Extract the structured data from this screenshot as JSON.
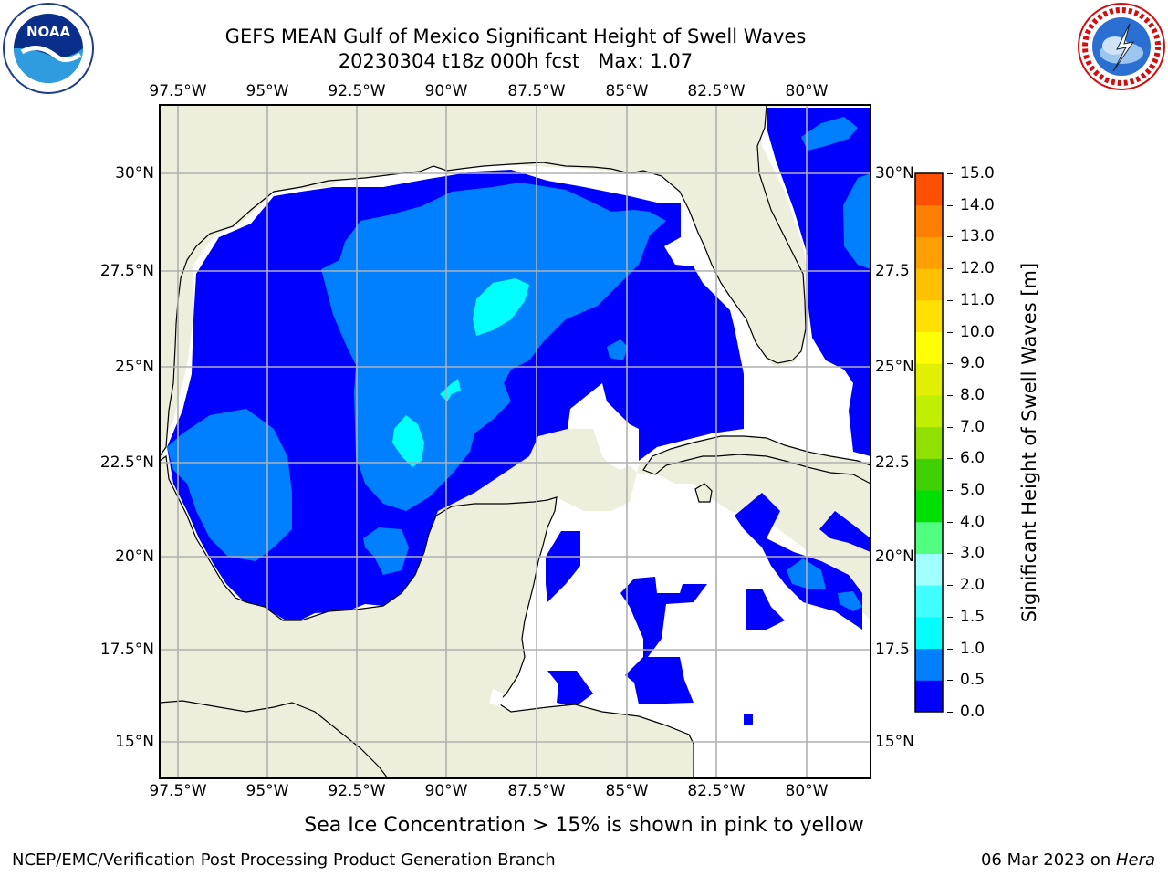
{
  "title": {
    "line1": "GEFS MEAN Gulf of Mexico Significant Height of Swell Waves",
    "line2": "20230304 t18z 000h fcst   Max: 1.07"
  },
  "logos": {
    "left": {
      "icon": "noaa-logo",
      "text": "NOAA",
      "ring_text": "NATIONAL OCEANIC AND ATMOSPHERIC ADMINISTRATION · U.S. DEPARTMENT OF COMMERCE"
    },
    "right": {
      "icon": "nws-logo",
      "ring_text": "NATIONAL WEATHER SERVICE"
    }
  },
  "map": {
    "lon_labels": [
      "97.5°W",
      "95°W",
      "92.5°W",
      "90°W",
      "87.5°W",
      "85°W",
      "82.5°W",
      "80°W"
    ],
    "lat_labels_left": [
      "30°N",
      "27.5°N",
      "25°N",
      "22.5°N",
      "20°N",
      "17.5°N",
      "15°N"
    ],
    "lat_labels_right": [
      "30°N",
      "27.5",
      "25°N",
      "22.5",
      "20°N",
      "17.5",
      "15°N"
    ],
    "colors": {
      "land": "#eeeedd",
      "band_0_0_5": "#0000ff",
      "band_0_5_1_0": "#0080ff",
      "band_1_0_1_5": "#00ffff",
      "no_data": "#ffffff",
      "grid": "#b0b0b0"
    }
  },
  "colorbar": {
    "label": "Significant Height of Swell Waves [m]",
    "ticks": [
      "15.0",
      "14.0",
      "13.0",
      "12.0",
      "11.0",
      "10.0",
      "9.0",
      "8.0",
      "7.0",
      "6.0",
      "5.0",
      "4.0",
      "3.0",
      "2.0",
      "1.5",
      "1.0",
      "0.5",
      "0.0"
    ],
    "colors": [
      "#0000ff",
      "#0080ff",
      "#00ffff",
      "#40ffff",
      "#a0ffff",
      "#50ff80",
      "#00e000",
      "#40d000",
      "#90e000",
      "#c0f000",
      "#e0f000",
      "#ffff00",
      "#ffe000",
      "#ffc000",
      "#ffa000",
      "#ff8000",
      "#ff5000",
      "#ff2000",
      "#ff0000"
    ]
  },
  "note": "Sea Ice Concentration > 15% is shown in pink to yellow",
  "footer": {
    "left": "NCEP/EMC/Verification Post Processing Product Generation Branch",
    "date": "06 Mar 2023 on ",
    "machine": "Hera"
  }
}
